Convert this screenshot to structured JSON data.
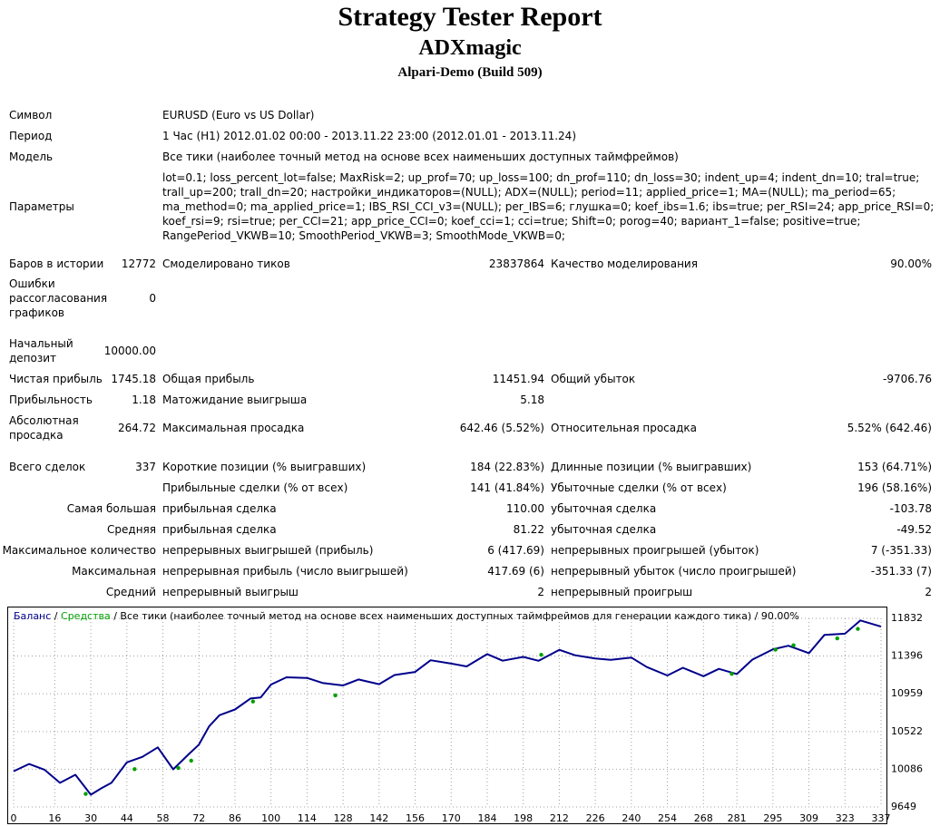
{
  "header": {
    "title": "Strategy Tester Report",
    "expert": "ADXmagic",
    "server": "Alpari-Demo (Build 509)"
  },
  "info": {
    "symbol_label": "Символ",
    "symbol_value": "EURUSD (Euro vs US Dollar)",
    "period_label": "Период",
    "period_value": "1 Час (H1) 2012.01.02 00:00 - 2013.11.22 23:00 (2012.01.01 - 2013.11.24)",
    "model_label": "Модель",
    "model_value": "Все тики (наиболее точный метод на основе всех наименьших доступных таймфреймов)",
    "params_label": "Параметры",
    "params_lines": [
      "lot=0.1; loss_percent_lot=false; MaxRisk=2; up_prof=70; up_loss=100; dn_prof=110; dn_loss=30; indent_up=4; indent_dn=10; tral=true;",
      "trall_up=200; trall_dn=20; настройки_индикаторов=(NULL); ADX=(NULL); period=11; applied_price=1; MA=(NULL); ma_period=65;",
      "ma_method=0; ma_applied_price=1; IBS_RSI_CCI_v3=(NULL); per_IBS=6; глушка=0; koef_ibs=1.6; ibs=true; per_RSI=24; app_price_RSI=0;",
      "koef_rsi=9; rsi=true; per_CCI=21; app_price_CCI=0; koef_cci=1; cci=true; Shift=0; porog=40; вариант_1=false; positive=true;",
      "RangePeriod_VKWB=10; SmoothPeriod_VKWB=3; SmoothMode_VKWB=0;"
    ]
  },
  "stats": {
    "bars_label": "Баров в истории",
    "bars_value": "12772",
    "ticks_label": "Смоделировано тиков",
    "ticks_value": "23837864",
    "quality_label": "Качество моделирования",
    "quality_value": "90.00%",
    "errors_label": "Ошибки рассогласования графиков",
    "errors_value": "0",
    "deposit_label": "Начальный депозит",
    "deposit_value": "10000.00",
    "net_label": "Чистая прибыль",
    "net_value": "1745.18",
    "gross_profit_label": "Общая прибыль",
    "gross_profit_value": "11451.94",
    "gross_loss_label": "Общий убыток",
    "gross_loss_value": "-9706.76",
    "pf_label": "Прибыльность",
    "pf_value": "1.18",
    "expected_label": "Матожидание выигрыша",
    "expected_value": "5.18",
    "abs_dd_label": "Абсолютная просадка",
    "abs_dd_value": "264.72",
    "max_dd_label": "Максимальная просадка",
    "max_dd_value": "642.46 (5.52%)",
    "rel_dd_label": "Относительная просадка",
    "rel_dd_value": "5.52% (642.46)",
    "trades_label": "Всего сделок",
    "trades_value": "337",
    "short_label": "Короткие позиции (% выигравших)",
    "short_value": "184 (22.83%)",
    "long_label": "Длинные позиции (% выигравших)",
    "long_value": "153 (64.71%)",
    "profit_trades_label": "Прибыльные сделки (% от всех)",
    "profit_trades_value": "141 (41.84%)",
    "loss_trades_label": "Убыточные сделки (% от всех)",
    "loss_trades_value": "196 (58.16%)",
    "largest_label": "Самая большая",
    "largest_profit_label": "прибыльная сделка",
    "largest_profit_value": "110.00",
    "largest_loss_label": "убыточная сделка",
    "largest_loss_value": "-103.78",
    "average_label": "Средняя",
    "average_profit_label": "прибыльная сделка",
    "average_profit_value": "81.22",
    "average_loss_label": "убыточная сделка",
    "average_loss_value": "-49.52",
    "max_count_label": "Максимальное количество",
    "max_cons_wins_label": "непрерывных выигрышей (прибыль)",
    "max_cons_wins_value": "6 (417.69)",
    "max_cons_losses_label": "непрерывных проигрышей (убыток)",
    "max_cons_losses_value": "7 (-351.33)",
    "maximal_label": "Максимальная",
    "maximal_profit_label": "непрерывная прибыль (число выигрышей)",
    "maximal_profit_value": "417.69 (6)",
    "maximal_loss_label": "непрерывный убыток (число проигрышей)",
    "maximal_loss_value": "-351.33 (7)",
    "avg_cons_label": "Средний",
    "avg_cons_wins_label": "непрерывный выигрыш",
    "avg_cons_wins_value": "2",
    "avg_cons_losses_label": "непрерывный проигрыш",
    "avg_cons_losses_value": "2"
  },
  "chart_caption": {
    "balance": "Баланс",
    "sep1": " / ",
    "equity": "Средства",
    "rest": " / Все тики (наиболее точный метод на основе всех наименьших доступных таймфреймов для генерации каждого тика) / 90.00%"
  },
  "colors": {
    "balance": "#00008b",
    "equity": "#00a000",
    "grid": "#a0a0a0"
  },
  "chart_data": {
    "type": "line",
    "title": "",
    "xlabel": "",
    "ylabel": "",
    "x_ticks": [
      0,
      16,
      30,
      44,
      58,
      72,
      86,
      100,
      114,
      128,
      142,
      156,
      170,
      184,
      198,
      212,
      226,
      240,
      254,
      268,
      281,
      295,
      309,
      323,
      337
    ],
    "y_ticks": [
      9649,
      10086,
      10522,
      10959,
      11396,
      11832
    ],
    "xlim": [
      0,
      337
    ],
    "ylim": [
      9649,
      11832
    ],
    "grid": true,
    "series": [
      {
        "name": "Баланс",
        "x": [
          0,
          6,
          12,
          18,
          24,
          30,
          34,
          38,
          44,
          50,
          56,
          62,
          68,
          72,
          76,
          80,
          86,
          92,
          96,
          100,
          106,
          114,
          120,
          128,
          134,
          142,
          148,
          156,
          162,
          170,
          176,
          184,
          190,
          198,
          204,
          212,
          218,
          226,
          232,
          240,
          246,
          254,
          260,
          268,
          274,
          281,
          287,
          295,
          301,
          309,
          315,
          323,
          329,
          337
        ],
        "y": [
          10063,
          10146,
          10080,
          9928,
          10022,
          9791,
          9864,
          9928,
          10165,
          10228,
          10339,
          10085,
          10259,
          10370,
          10584,
          10711,
          10777,
          10904,
          10916,
          11066,
          11150,
          11142,
          11085,
          11055,
          11125,
          11070,
          11176,
          11212,
          11347,
          11308,
          11276,
          11418,
          11342,
          11386,
          11341,
          11468,
          11406,
          11368,
          11352,
          11379,
          11268,
          11171,
          11260,
          11162,
          11247,
          11188,
          11354,
          11474,
          11515,
          11429,
          11640,
          11655,
          11808,
          11736
        ]
      },
      {
        "name": "Средства",
        "x": [
          28,
          47,
          64,
          69,
          93,
          125,
          205,
          279,
          296,
          303,
          320,
          328
        ],
        "y": [
          9800,
          10086,
          10100,
          10185,
          10870,
          10940,
          11410,
          11190,
          11470,
          11520,
          11600,
          11710
        ]
      }
    ]
  }
}
